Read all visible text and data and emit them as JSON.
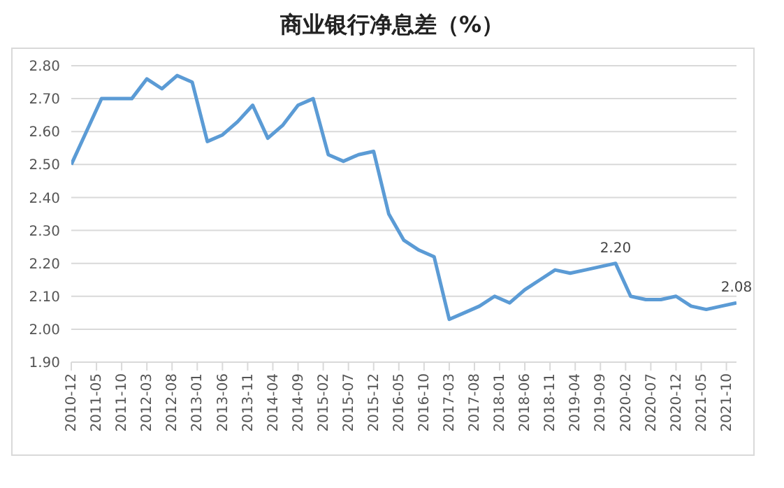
{
  "chart_data": {
    "type": "line",
    "title": "商业银行净息差（%）",
    "x": [
      "2010-12",
      "2011-03",
      "2011-06",
      "2011-09",
      "2011-12",
      "2012-03",
      "2012-06",
      "2012-09",
      "2012-12",
      "2013-03",
      "2013-06",
      "2013-09",
      "2013-12",
      "2014-03",
      "2014-06",
      "2014-09",
      "2014-12",
      "2015-03",
      "2015-06",
      "2015-09",
      "2015-12",
      "2016-03",
      "2016-06",
      "2016-09",
      "2016-12",
      "2017-03",
      "2017-06",
      "2017-09",
      "2017-12",
      "2018-03",
      "2018-06",
      "2018-09",
      "2018-12",
      "2019-03",
      "2019-06",
      "2019-09",
      "2019-12",
      "2020-03",
      "2020-06",
      "2020-09",
      "2020-12",
      "2021-03",
      "2021-06",
      "2021-09",
      "2021-12"
    ],
    "series": [
      {
        "color": "#5b9bd5",
        "values": [
          2.5,
          2.6,
          2.7,
          2.7,
          2.7,
          2.76,
          2.73,
          2.77,
          2.75,
          2.57,
          2.59,
          2.63,
          2.68,
          2.58,
          2.62,
          2.68,
          2.7,
          2.53,
          2.51,
          2.53,
          2.54,
          2.35,
          2.27,
          2.24,
          2.22,
          2.03,
          2.05,
          2.07,
          2.1,
          2.08,
          2.12,
          2.15,
          2.18,
          2.17,
          2.18,
          2.19,
          2.2,
          2.1,
          2.09,
          2.09,
          2.1,
          2.07,
          2.06,
          2.07,
          2.08
        ],
        "value_labels": [
          null,
          null,
          null,
          null,
          null,
          null,
          null,
          null,
          null,
          null,
          null,
          null,
          null,
          null,
          null,
          null,
          null,
          null,
          null,
          null,
          null,
          null,
          null,
          null,
          null,
          null,
          null,
          null,
          null,
          null,
          null,
          null,
          null,
          null,
          null,
          null,
          "2.20",
          null,
          null,
          null,
          null,
          null,
          null,
          null,
          "2.08"
        ]
      }
    ],
    "xlim": [
      "2010-12",
      "2021-12"
    ],
    "xticks": [
      "2010-12",
      "2011-05",
      "2011-10",
      "2012-03",
      "2012-08",
      "2013-01",
      "2013-06",
      "2013-11",
      "2014-04",
      "2014-09",
      "2015-02",
      "2015-07",
      "2015-12",
      "2016-05",
      "2016-10",
      "2017-03",
      "2017-08",
      "2018-01",
      "2018-06",
      "2018-11",
      "2019-04",
      "2019-09",
      "2020-02",
      "2020-07",
      "2020-12",
      "2021-05",
      "2021-10"
    ],
    "ylim": [
      1.9,
      2.8
    ],
    "yticks": [
      {
        "value": 1.9,
        "label": "1.90"
      },
      {
        "value": 2.0,
        "label": "2.00"
      },
      {
        "value": 2.1,
        "label": "2.10"
      },
      {
        "value": 2.2,
        "label": "2.20"
      },
      {
        "value": 2.3,
        "label": "2.30"
      },
      {
        "value": 2.4,
        "label": "2.40"
      },
      {
        "value": 2.5,
        "label": "2.50"
      },
      {
        "value": 2.6,
        "label": "2.60"
      },
      {
        "value": 2.7,
        "label": "2.70"
      },
      {
        "value": 2.8,
        "label": "2.80"
      }
    ],
    "grid": "y",
    "legend": false,
    "marker": "none",
    "line_style": "solid"
  }
}
